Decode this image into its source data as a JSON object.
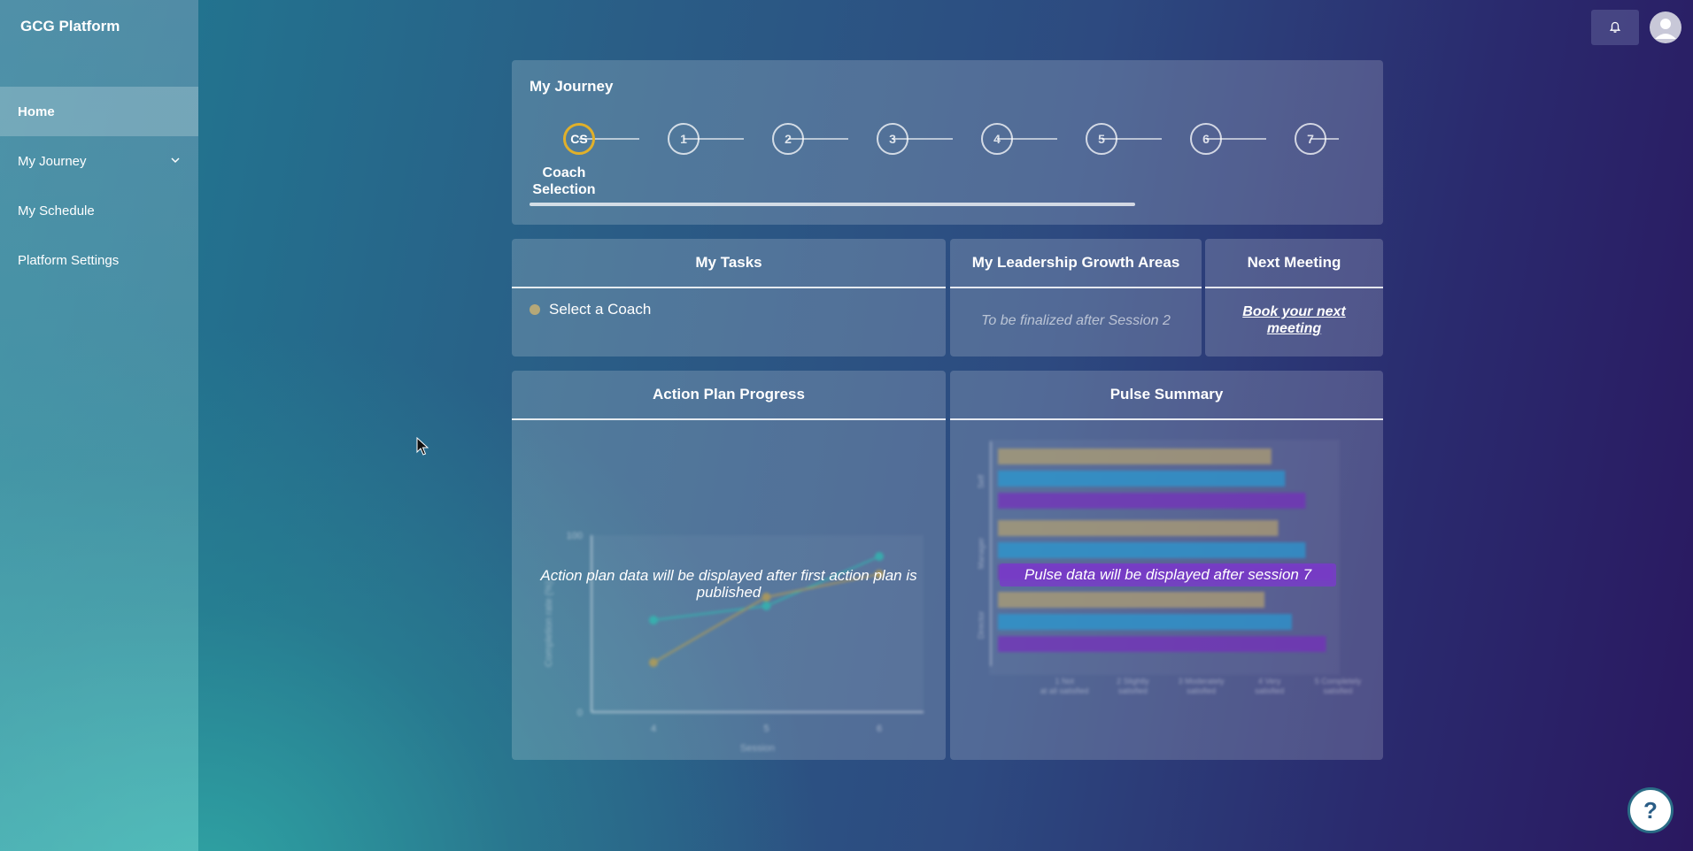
{
  "app": {
    "title": "GCG Platform"
  },
  "sidebar": {
    "items": [
      {
        "label": "Home",
        "active": true
      },
      {
        "label": "My Journey",
        "expandable": true
      },
      {
        "label": "My Schedule"
      },
      {
        "label": "Platform Settings"
      }
    ]
  },
  "header": {
    "bell_icon": "bell-icon",
    "avatar_icon": "user-avatar-icon"
  },
  "journey": {
    "title": "My Journey",
    "steps": [
      "CS",
      "1",
      "2",
      "3",
      "4",
      "5",
      "6",
      "7"
    ],
    "current_step_label_line1": "Coach",
    "current_step_label_line2": "Selection",
    "accent_color": "#e0b02a"
  },
  "tasks": {
    "title": "My Tasks",
    "items": [
      {
        "label": "Select a Coach"
      }
    ]
  },
  "growth": {
    "title": "My Leadership Growth Areas",
    "placeholder": "To be finalized after Session 2"
  },
  "meeting": {
    "title": "Next Meeting",
    "link": "Book your next meeting"
  },
  "action_plan": {
    "title": "Action Plan Progress",
    "message": "Action plan data will be displayed after first action plan is published"
  },
  "pulse": {
    "title": "Pulse Summary",
    "message": "Pulse data will be displayed after session 7"
  },
  "help": {
    "label": "?"
  },
  "chart_data": [
    {
      "type": "line",
      "x": [
        4,
        5,
        6
      ],
      "series": [
        {
          "values": [
            52,
            60,
            88
          ],
          "color": "#2ec4b6"
        },
        {
          "values": [
            28,
            65,
            78
          ],
          "color": "#c9a548"
        }
      ],
      "ylim": [
        0,
        100
      ],
      "xlabel": "Session",
      "ylabel": "Completion rate (%)"
    },
    {
      "type": "bar",
      "orientation": "horizontal",
      "categories": [
        "Self",
        "Manager",
        "Director"
      ],
      "series": [
        {
          "values": [
            4.0,
            4.1,
            3.9
          ],
          "color": "#b8a573"
        },
        {
          "values": [
            4.2,
            4.5,
            4.3
          ],
          "color": "#2a9ed6"
        },
        {
          "values": [
            4.5,
            4.9,
            4.8
          ],
          "color": "#7a2fc0"
        }
      ],
      "xticks": [
        "Not at all satisfied",
        "Slightly satisfied",
        "Moderately satisfied",
        "Very satisfied",
        "Completely satisfied"
      ],
      "xlim": [
        0,
        5
      ]
    }
  ]
}
